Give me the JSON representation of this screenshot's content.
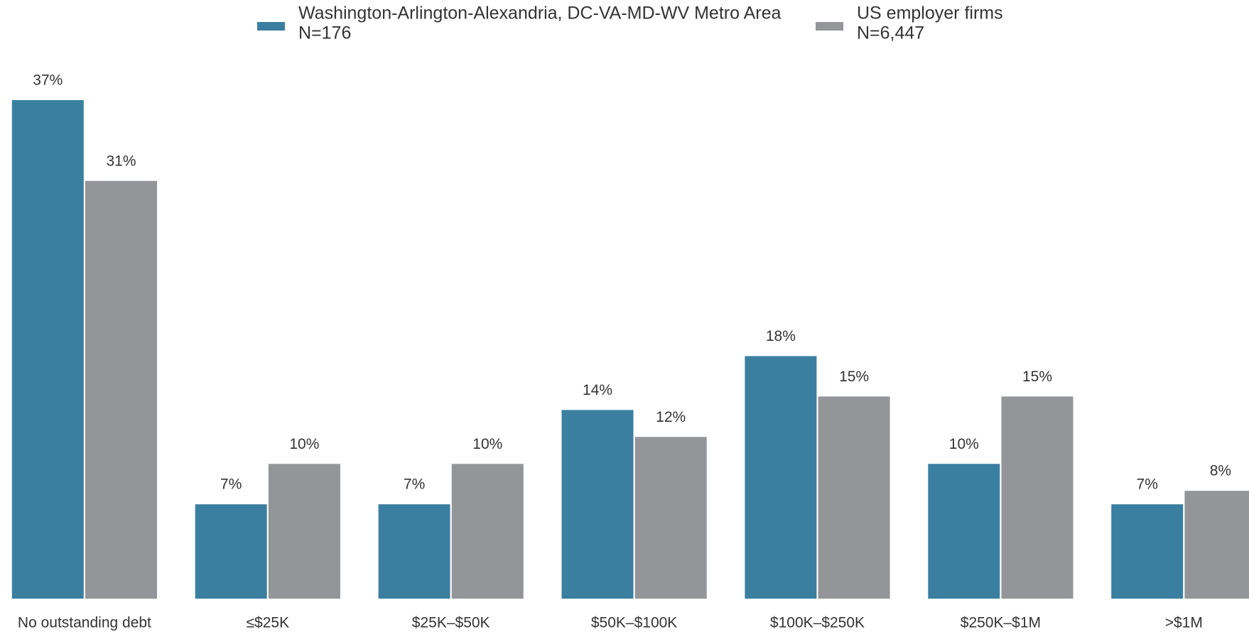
{
  "chart_data": {
    "type": "bar",
    "categories": [
      "No outstanding debt",
      "≤$25K",
      "$25K–$50K",
      "$50K–$100K",
      "$100K–$250K",
      "$250K–$1M",
      ">$1M"
    ],
    "series": [
      {
        "name": "Washington-Arlington-Alexandria, DC-VA-MD-WV Metro Area",
        "sample": "N=176",
        "color": "#3a7fa0",
        "values": [
          37,
          7,
          7,
          14,
          18,
          10,
          7
        ],
        "value_labels": [
          "37%",
          "7%",
          "7%",
          "14%",
          "18%",
          "10%",
          "7%"
        ]
      },
      {
        "name": "US employer firms",
        "sample": "N=6,447",
        "color": "#949598",
        "values": [
          31,
          10,
          10,
          12,
          15,
          15,
          8
        ],
        "value_labels": [
          "31%",
          "10%",
          "10%",
          "12%",
          "15%",
          "15%",
          "8%"
        ]
      }
    ],
    "ylim": [
      0,
      40
    ],
    "legend": "top"
  }
}
